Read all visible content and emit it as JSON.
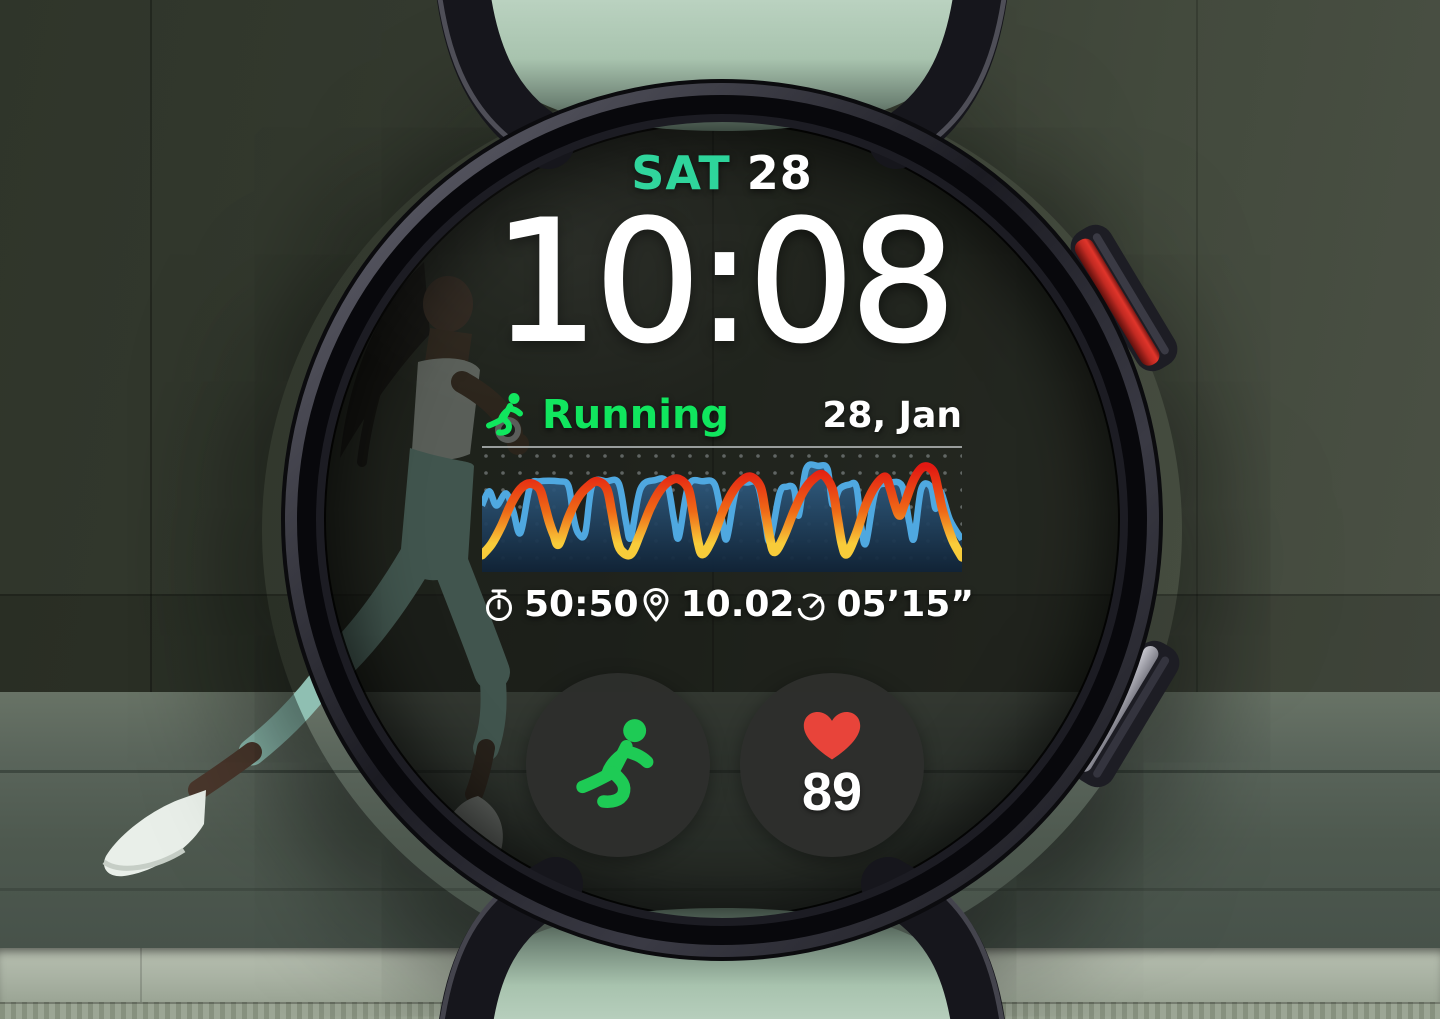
{
  "colors": {
    "accent_teal": "#2bd49a",
    "accent_green": "#10e65e",
    "icon_green": "#1ecb55",
    "heart_red": "#e8443a",
    "text_white": "#ffffff",
    "band_mint": "#aec9b4",
    "chart_blue_line": "#4fa8e0",
    "chart_blue_fill_top": "#34648c",
    "chart_blue_fill_bottom": "#102337",
    "chart_red_top": "#e31912",
    "chart_red_mid": "#ef6b17",
    "chart_red_bottom": "#f8cc3a",
    "complication_bg": "#2d2e2c",
    "button_accent_red": "#c22a22"
  },
  "icons": {
    "activity": "runner-icon",
    "stat_0": "stopwatch-icon",
    "stat_1": "location-pin-icon",
    "stat_2": "pace-gauge-icon",
    "complication_0": "running-man-icon",
    "complication_1": "heart-icon"
  },
  "watch_face": {
    "day_label": "SAT",
    "day_number": "28",
    "time": "10:08",
    "activity_card": {
      "title": "Running",
      "date": "28, Jan",
      "stats": [
        {
          "icon": "stopwatch-icon",
          "value": "50:50"
        },
        {
          "icon": "location-pin-icon",
          "value": "10.02"
        },
        {
          "icon": "pace-gauge-icon",
          "value": "05’15”"
        }
      ]
    },
    "complications": [
      {
        "icon": "running-man-icon",
        "type": "workout-shortcut"
      },
      {
        "icon": "heart-icon",
        "type": "heart-rate",
        "value": "89"
      }
    ]
  },
  "chart_data": {
    "type": "area+line",
    "grid": "dots",
    "legend": "none",
    "x_range": [
      0,
      100
    ],
    "y_range": [
      0,
      100
    ],
    "series": [
      {
        "name": "pace",
        "style": "area",
        "color": "#4fa8e0",
        "points": [
          [
            0,
            55
          ],
          [
            1.5,
            68
          ],
          [
            3,
            55
          ],
          [
            5,
            66
          ],
          [
            6.5,
            50
          ],
          [
            8,
            30
          ],
          [
            10,
            72
          ],
          [
            12,
            77
          ],
          [
            16,
            77
          ],
          [
            18,
            73
          ],
          [
            19,
            46
          ],
          [
            20,
            30
          ],
          [
            21.5,
            30
          ],
          [
            23,
            74
          ],
          [
            26,
            77
          ],
          [
            28.5,
            75
          ],
          [
            30,
            40
          ],
          [
            31,
            26
          ],
          [
            33,
            70
          ],
          [
            36,
            78
          ],
          [
            38.5,
            76
          ],
          [
            40,
            42
          ],
          [
            41,
            26
          ],
          [
            43,
            73
          ],
          [
            46,
            77
          ],
          [
            48.5,
            74
          ],
          [
            50,
            42
          ],
          [
            51,
            25
          ],
          [
            53,
            70
          ],
          [
            55.5,
            76
          ],
          [
            57.5,
            73
          ],
          [
            59,
            40
          ],
          [
            60,
            23
          ],
          [
            62,
            66
          ],
          [
            63.5,
            72
          ],
          [
            65,
            70
          ],
          [
            66,
            46
          ],
          [
            67.5,
            88
          ],
          [
            70,
            91
          ],
          [
            72,
            88
          ],
          [
            73,
            56
          ],
          [
            74.5,
            70
          ],
          [
            76.5,
            74
          ],
          [
            78,
            72
          ],
          [
            79,
            36
          ],
          [
            80,
            21
          ],
          [
            82,
            68
          ],
          [
            84.5,
            75
          ],
          [
            87.5,
            73
          ],
          [
            89,
            40
          ],
          [
            90,
            25
          ],
          [
            91.5,
            70
          ],
          [
            93.5,
            72
          ],
          [
            94.5,
            52
          ],
          [
            95.5,
            68
          ],
          [
            97.5,
            42
          ],
          [
            100,
            24
          ]
        ]
      },
      {
        "name": "heart-rate",
        "style": "line",
        "color_gradient": [
          "#e31912",
          "#ef6b17",
          "#f8cc3a"
        ],
        "points": [
          [
            0,
            10
          ],
          [
            2,
            20
          ],
          [
            4,
            36
          ],
          [
            6,
            56
          ],
          [
            8,
            70
          ],
          [
            10,
            75
          ],
          [
            12,
            70
          ],
          [
            13,
            56
          ],
          [
            14,
            40
          ],
          [
            15,
            28
          ],
          [
            16,
            20
          ],
          [
            18,
            44
          ],
          [
            20,
            62
          ],
          [
            22,
            72
          ],
          [
            24,
            77
          ],
          [
            26,
            70
          ],
          [
            27,
            50
          ],
          [
            28,
            26
          ],
          [
            29,
            14
          ],
          [
            31,
            11
          ],
          [
            33,
            30
          ],
          [
            35,
            52
          ],
          [
            37,
            68
          ],
          [
            39,
            77
          ],
          [
            41,
            79
          ],
          [
            43,
            70
          ],
          [
            44,
            48
          ],
          [
            45,
            22
          ],
          [
            46,
            11
          ],
          [
            48,
            25
          ],
          [
            50,
            48
          ],
          [
            52,
            66
          ],
          [
            54,
            77
          ],
          [
            56,
            81
          ],
          [
            58,
            72
          ],
          [
            59,
            50
          ],
          [
            60,
            25
          ],
          [
            61,
            13
          ],
          [
            63,
            28
          ],
          [
            65,
            50
          ],
          [
            67,
            68
          ],
          [
            69,
            79
          ],
          [
            71,
            83
          ],
          [
            73,
            70
          ],
          [
            74,
            45
          ],
          [
            75,
            20
          ],
          [
            76,
            11
          ],
          [
            78,
            30
          ],
          [
            80,
            56
          ],
          [
            82,
            73
          ],
          [
            84,
            81
          ],
          [
            85,
            71
          ],
          [
            86,
            56
          ],
          [
            87,
            46
          ],
          [
            88,
            56
          ],
          [
            90,
            79
          ],
          [
            92,
            90
          ],
          [
            94,
            86
          ],
          [
            95,
            70
          ],
          [
            96,
            50
          ],
          [
            98,
            24
          ],
          [
            100,
            8
          ]
        ]
      }
    ]
  }
}
